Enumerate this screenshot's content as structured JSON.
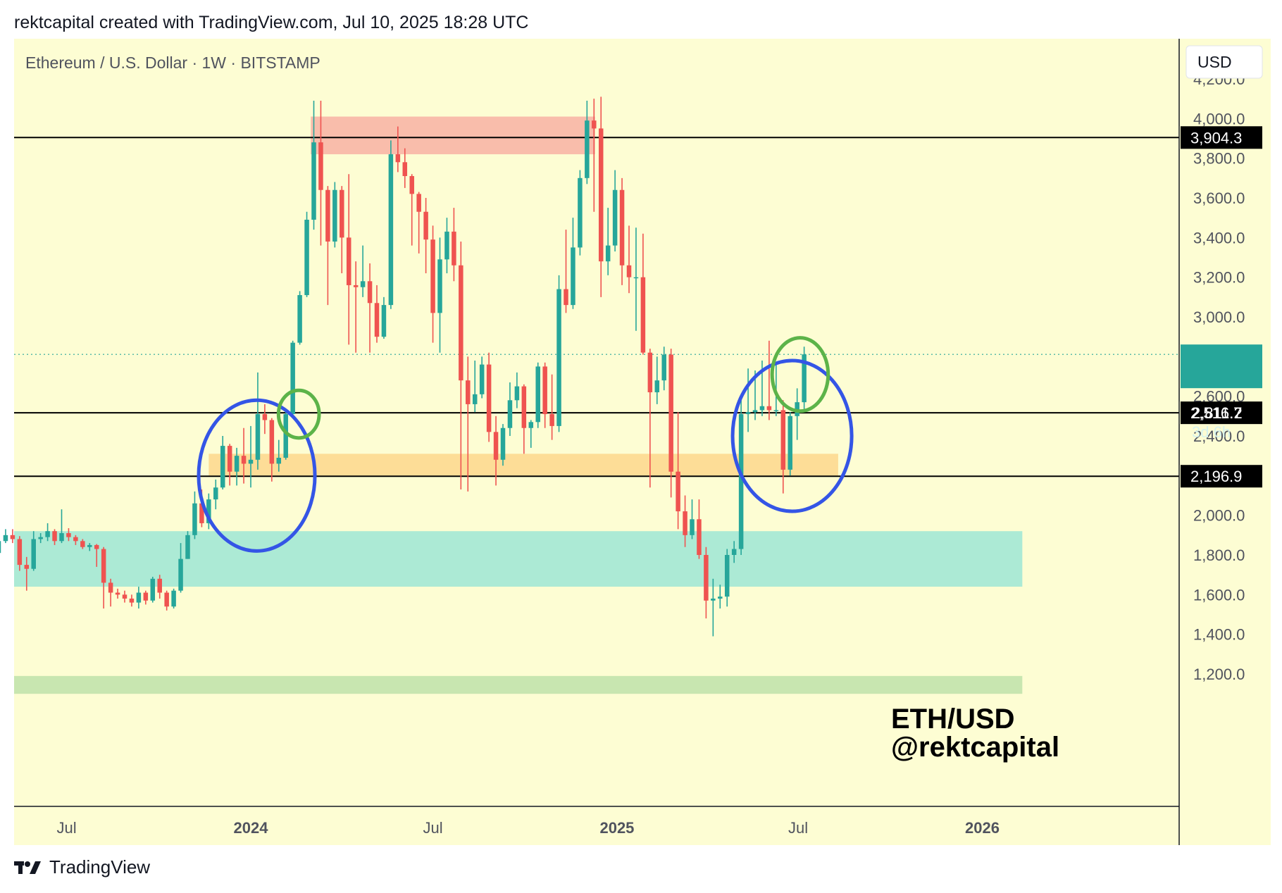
{
  "header": {
    "attribution": "rektcapital created with TradingView.com, Jul 10, 2025 18:28 UTC"
  },
  "chart": {
    "symbol_line": "Ethereum / U.S. Dollar · 1W · BITSTAMP",
    "currency_label": "USD",
    "watermark_line1": "ETH/USD",
    "watermark_line2": "@rektcapital",
    "current_price_label": "2,811.2",
    "countdown_label": "3d 6h"
  },
  "colors": {
    "plot_bg": "#fdfdd3",
    "up": "#26a69a",
    "down": "#ef5350",
    "resistance_zone": "#f9bdab",
    "support_zone": "#fddd97",
    "accumulation_zone": "#acead5",
    "base_zone": "#c8e6b0",
    "circle_blue": "#3455e6",
    "circle_green": "#5cb349",
    "current_price": "#26a69a"
  },
  "chart_data": {
    "type": "candlestick",
    "title": "Ethereum / U.S. Dollar · 1W · BITSTAMP",
    "ylim": [
      1050,
      4400
    ],
    "y_axis_ticks": [
      "4,200.0",
      "4,000.0",
      "3,800.0",
      "3,600.0",
      "3,400.0",
      "3,200.0",
      "3,000.0",
      "2,600.0",
      "2,400.0",
      "2,000.0",
      "1,800.0",
      "1,600.0",
      "1,400.0",
      "1,200.0"
    ],
    "y_axis_tick_values": [
      4200,
      4000,
      3800,
      3600,
      3400,
      3200,
      3000,
      2600,
      2400,
      2000,
      1800,
      1600,
      1400,
      1200
    ],
    "x_axis_ticks": [
      {
        "label": "Jul",
        "date": "2023-07-01",
        "bold": false
      },
      {
        "label": "2024",
        "date": "2024-01-01",
        "bold": true
      },
      {
        "label": "Jul",
        "date": "2024-07-01",
        "bold": false
      },
      {
        "label": "2025",
        "date": "2025-01-01",
        "bold": true
      },
      {
        "label": "Jul",
        "date": "2025-07-01",
        "bold": false
      },
      {
        "label": "2026",
        "date": "2026-01-01",
        "bold": true
      }
    ],
    "horizontal_levels": [
      {
        "value": 3904.3,
        "label": "3,904.3"
      },
      {
        "value": 2516.7,
        "label": "2,516.7"
      },
      {
        "value": 2196.9,
        "label": "2,196.9"
      }
    ],
    "current_price": 2811.2,
    "zones": [
      {
        "name": "resistance",
        "from_date": "2024-03-01",
        "to_date": "2024-12-10",
        "low": 3820,
        "high": 4010
      },
      {
        "name": "support",
        "from_date": "2023-11-20",
        "to_date": "2025-08-10",
        "low": 2200,
        "high": 2310
      },
      {
        "name": "accumulation",
        "from_date": "2023-04-10",
        "to_date": "2026-02-10",
        "low": 1640,
        "high": 1920
      },
      {
        "name": "base",
        "from_date": "2023-04-10",
        "to_date": "2026-02-10",
        "low": 1100,
        "high": 1190
      }
    ],
    "annotations": [
      {
        "shape": "circle",
        "color": "blue",
        "center_date": "2024-01-07",
        "center_value": 2200,
        "radius_weeks": 8.3,
        "radius_value": 380
      },
      {
        "shape": "circle",
        "color": "green",
        "center_date": "2024-02-18",
        "center_value": 2510,
        "radius_weeks": 2.9,
        "radius_value": 120
      },
      {
        "shape": "circle",
        "color": "blue",
        "center_date": "2025-06-25",
        "center_value": 2400,
        "radius_weeks": 8.5,
        "radius_value": 380
      },
      {
        "shape": "circle",
        "color": "green",
        "center_date": "2025-07-03",
        "center_value": 2710,
        "radius_weeks": 4.0,
        "radius_value": 185
      }
    ],
    "candles": [
      {
        "date": "2023-04-10",
        "open": 1880,
        "high": 1920,
        "low": 1790,
        "close": 1840
      },
      {
        "date": "2023-04-17",
        "open": 1840,
        "high": 1890,
        "low": 1770,
        "close": 1810
      },
      {
        "date": "2023-04-24",
        "open": 1810,
        "high": 1905,
        "low": 1790,
        "close": 1870
      },
      {
        "date": "2023-05-01",
        "open": 1870,
        "high": 1930,
        "low": 1860,
        "close": 1900
      },
      {
        "date": "2023-05-08",
        "open": 1900,
        "high": 1930,
        "low": 1860,
        "close": 1880
      },
      {
        "date": "2023-05-15",
        "open": 1880,
        "high": 1895,
        "low": 1720,
        "close": 1750
      },
      {
        "date": "2023-05-22",
        "open": 1750,
        "high": 1790,
        "low": 1620,
        "close": 1730
      },
      {
        "date": "2023-05-29",
        "open": 1730,
        "high": 1920,
        "low": 1720,
        "close": 1880
      },
      {
        "date": "2023-06-05",
        "open": 1880,
        "high": 1910,
        "low": 1860,
        "close": 1890
      },
      {
        "date": "2023-06-12",
        "open": 1890,
        "high": 1960,
        "low": 1870,
        "close": 1920
      },
      {
        "date": "2023-06-19",
        "open": 1920,
        "high": 1930,
        "low": 1850,
        "close": 1870
      },
      {
        "date": "2023-06-26",
        "open": 1870,
        "high": 2030,
        "low": 1860,
        "close": 1910
      },
      {
        "date": "2023-07-03",
        "open": 1910,
        "high": 1935,
        "low": 1870,
        "close": 1890
      },
      {
        "date": "2023-07-10",
        "open": 1890,
        "high": 1900,
        "low": 1850,
        "close": 1870
      },
      {
        "date": "2023-07-17",
        "open": 1870,
        "high": 1880,
        "low": 1830,
        "close": 1840
      },
      {
        "date": "2023-07-24",
        "open": 1840,
        "high": 1860,
        "low": 1820,
        "close": 1850
      },
      {
        "date": "2023-07-31",
        "open": 1850,
        "high": 1855,
        "low": 1740,
        "close": 1830
      },
      {
        "date": "2023-08-07",
        "open": 1830,
        "high": 1840,
        "low": 1530,
        "close": 1660
      },
      {
        "date": "2023-08-14",
        "open": 1660,
        "high": 1680,
        "low": 1540,
        "close": 1610
      },
      {
        "date": "2023-08-21",
        "open": 1610,
        "high": 1630,
        "low": 1580,
        "close": 1600
      },
      {
        "date": "2023-08-28",
        "open": 1600,
        "high": 1620,
        "low": 1560,
        "close": 1580
      },
      {
        "date": "2023-09-04",
        "open": 1580,
        "high": 1600,
        "low": 1540,
        "close": 1560
      },
      {
        "date": "2023-09-11",
        "open": 1560,
        "high": 1640,
        "low": 1530,
        "close": 1610
      },
      {
        "date": "2023-09-18",
        "open": 1610,
        "high": 1620,
        "low": 1550,
        "close": 1570
      },
      {
        "date": "2023-09-25",
        "open": 1570,
        "high": 1690,
        "low": 1560,
        "close": 1680
      },
      {
        "date": "2023-10-02",
        "open": 1680,
        "high": 1700,
        "low": 1580,
        "close": 1610
      },
      {
        "date": "2023-10-09",
        "open": 1610,
        "high": 1620,
        "low": 1520,
        "close": 1540
      },
      {
        "date": "2023-10-16",
        "open": 1540,
        "high": 1630,
        "low": 1530,
        "close": 1620
      },
      {
        "date": "2023-10-23",
        "open": 1620,
        "high": 1860,
        "low": 1610,
        "close": 1780
      },
      {
        "date": "2023-10-30",
        "open": 1780,
        "high": 1920,
        "low": 1780,
        "close": 1900
      },
      {
        "date": "2023-11-06",
        "open": 1900,
        "high": 2120,
        "low": 1880,
        "close": 2060
      },
      {
        "date": "2023-11-13",
        "open": 2060,
        "high": 2130,
        "low": 1940,
        "close": 1960
      },
      {
        "date": "2023-11-20",
        "open": 1960,
        "high": 2110,
        "low": 1930,
        "close": 2080
      },
      {
        "date": "2023-11-27",
        "open": 2080,
        "high": 2180,
        "low": 2030,
        "close": 2140
      },
      {
        "date": "2023-12-04",
        "open": 2140,
        "high": 2400,
        "low": 2130,
        "close": 2350
      },
      {
        "date": "2023-12-11",
        "open": 2350,
        "high": 2360,
        "low": 2150,
        "close": 2220
      },
      {
        "date": "2023-12-18",
        "open": 2220,
        "high": 2340,
        "low": 2150,
        "close": 2300
      },
      {
        "date": "2023-12-25",
        "open": 2300,
        "high": 2440,
        "low": 2160,
        "close": 2260
      },
      {
        "date": "2024-01-01",
        "open": 2260,
        "high": 2450,
        "low": 2140,
        "close": 2280
      },
      {
        "date": "2024-01-08",
        "open": 2280,
        "high": 2720,
        "low": 2230,
        "close": 2510
      },
      {
        "date": "2024-01-15",
        "open": 2510,
        "high": 2560,
        "low": 2410,
        "close": 2480
      },
      {
        "date": "2024-01-22",
        "open": 2480,
        "high": 2490,
        "low": 2170,
        "close": 2260
      },
      {
        "date": "2024-01-29",
        "open": 2260,
        "high": 2380,
        "low": 2220,
        "close": 2290
      },
      {
        "date": "2024-02-05",
        "open": 2290,
        "high": 2530,
        "low": 2280,
        "close": 2510
      },
      {
        "date": "2024-02-12",
        "open": 2510,
        "high": 2880,
        "low": 2500,
        "close": 2870
      },
      {
        "date": "2024-02-19",
        "open": 2870,
        "high": 3130,
        "low": 2860,
        "close": 3110
      },
      {
        "date": "2024-02-26",
        "open": 3110,
        "high": 3530,
        "low": 3100,
        "close": 3490
      },
      {
        "date": "2024-03-04",
        "open": 3490,
        "high": 4090,
        "low": 3440,
        "close": 3880
      },
      {
        "date": "2024-03-11",
        "open": 3880,
        "high": 4090,
        "low": 3360,
        "close": 3640
      },
      {
        "date": "2024-03-18",
        "open": 3640,
        "high": 3660,
        "low": 3060,
        "close": 3380
      },
      {
        "date": "2024-03-25",
        "open": 3380,
        "high": 3680,
        "low": 3350,
        "close": 3640
      },
      {
        "date": "2024-04-01",
        "open": 3640,
        "high": 3660,
        "low": 3220,
        "close": 3400
      },
      {
        "date": "2024-04-08",
        "open": 3400,
        "high": 3720,
        "low": 2860,
        "close": 3160
      },
      {
        "date": "2024-04-15",
        "open": 3160,
        "high": 3280,
        "low": 2820,
        "close": 3150
      },
      {
        "date": "2024-04-22",
        "open": 3150,
        "high": 3360,
        "low": 3100,
        "close": 3180
      },
      {
        "date": "2024-04-29",
        "open": 3180,
        "high": 3270,
        "low": 2820,
        "close": 3070
      },
      {
        "date": "2024-05-06",
        "open": 3070,
        "high": 3160,
        "low": 2870,
        "close": 2900
      },
      {
        "date": "2024-05-13",
        "open": 2900,
        "high": 3100,
        "low": 2890,
        "close": 3060
      },
      {
        "date": "2024-05-20",
        "open": 3060,
        "high": 3890,
        "low": 3040,
        "close": 3820
      },
      {
        "date": "2024-05-27",
        "open": 3820,
        "high": 3960,
        "low": 3730,
        "close": 3780
      },
      {
        "date": "2024-06-03",
        "open": 3780,
        "high": 3850,
        "low": 3650,
        "close": 3710
      },
      {
        "date": "2024-06-10",
        "open": 3710,
        "high": 3720,
        "low": 3360,
        "close": 3620
      },
      {
        "date": "2024-06-17",
        "open": 3620,
        "high": 3630,
        "low": 3320,
        "close": 3530
      },
      {
        "date": "2024-06-24",
        "open": 3530,
        "high": 3600,
        "low": 3220,
        "close": 3390
      },
      {
        "date": "2024-07-01",
        "open": 3390,
        "high": 3460,
        "low": 2870,
        "close": 3020
      },
      {
        "date": "2024-07-08",
        "open": 3020,
        "high": 3400,
        "low": 2820,
        "close": 3290
      },
      {
        "date": "2024-07-15",
        "open": 3290,
        "high": 3500,
        "low": 3220,
        "close": 3430
      },
      {
        "date": "2024-07-22",
        "open": 3430,
        "high": 3550,
        "low": 3180,
        "close": 3260
      },
      {
        "date": "2024-07-29",
        "open": 3260,
        "high": 3380,
        "low": 2130,
        "close": 2680
      },
      {
        "date": "2024-08-05",
        "open": 2680,
        "high": 2800,
        "low": 2120,
        "close": 2560
      },
      {
        "date": "2024-08-12",
        "open": 2560,
        "high": 2780,
        "low": 2520,
        "close": 2610
      },
      {
        "date": "2024-08-19",
        "open": 2610,
        "high": 2800,
        "low": 2590,
        "close": 2760
      },
      {
        "date": "2024-08-26",
        "open": 2760,
        "high": 2820,
        "low": 2370,
        "close": 2420
      },
      {
        "date": "2024-09-02",
        "open": 2420,
        "high": 2500,
        "low": 2150,
        "close": 2280
      },
      {
        "date": "2024-09-09",
        "open": 2280,
        "high": 2460,
        "low": 2250,
        "close": 2440
      },
      {
        "date": "2024-09-16",
        "open": 2440,
        "high": 2670,
        "low": 2400,
        "close": 2580
      },
      {
        "date": "2024-09-23",
        "open": 2580,
        "high": 2720,
        "low": 2540,
        "close": 2650
      },
      {
        "date": "2024-09-30",
        "open": 2650,
        "high": 2660,
        "low": 2310,
        "close": 2440
      },
      {
        "date": "2024-10-07",
        "open": 2440,
        "high": 2480,
        "low": 2340,
        "close": 2470
      },
      {
        "date": "2024-10-14",
        "open": 2470,
        "high": 2770,
        "low": 2440,
        "close": 2750
      },
      {
        "date": "2024-10-21",
        "open": 2750,
        "high": 2770,
        "low": 2440,
        "close": 2510
      },
      {
        "date": "2024-10-28",
        "open": 2510,
        "high": 2710,
        "low": 2380,
        "close": 2450
      },
      {
        "date": "2024-11-04",
        "open": 2450,
        "high": 3210,
        "low": 2420,
        "close": 3140
      },
      {
        "date": "2024-11-11",
        "open": 3140,
        "high": 3440,
        "low": 3020,
        "close": 3060
      },
      {
        "date": "2024-11-18",
        "open": 3060,
        "high": 3500,
        "low": 3040,
        "close": 3350
      },
      {
        "date": "2024-11-25",
        "open": 3350,
        "high": 3740,
        "low": 3310,
        "close": 3700
      },
      {
        "date": "2024-12-02",
        "open": 3700,
        "high": 4090,
        "low": 3670,
        "close": 3990
      },
      {
        "date": "2024-12-09",
        "open": 3990,
        "high": 4100,
        "low": 3530,
        "close": 3950
      },
      {
        "date": "2024-12-16",
        "open": 3950,
        "high": 4110,
        "low": 3100,
        "close": 3280
      },
      {
        "date": "2024-12-23",
        "open": 3280,
        "high": 3550,
        "low": 3210,
        "close": 3360
      },
      {
        "date": "2024-12-30",
        "open": 3360,
        "high": 3740,
        "low": 3330,
        "close": 3640
      },
      {
        "date": "2025-01-06",
        "open": 3640,
        "high": 3700,
        "low": 3160,
        "close": 3260
      },
      {
        "date": "2025-01-13",
        "open": 3260,
        "high": 3460,
        "low": 3120,
        "close": 3200
      },
      {
        "date": "2025-01-20",
        "open": 3200,
        "high": 3450,
        "low": 2930,
        "close": 3200
      },
      {
        "date": "2025-01-27",
        "open": 3200,
        "high": 3420,
        "low": 2810,
        "close": 2820
      },
      {
        "date": "2025-02-03",
        "open": 2820,
        "high": 2840,
        "low": 2140,
        "close": 2620
      },
      {
        "date": "2025-02-10",
        "open": 2620,
        "high": 2800,
        "low": 2560,
        "close": 2680
      },
      {
        "date": "2025-02-17",
        "open": 2680,
        "high": 2850,
        "low": 2630,
        "close": 2810
      },
      {
        "date": "2025-02-24",
        "open": 2810,
        "high": 2840,
        "low": 2090,
        "close": 2220
      },
      {
        "date": "2025-03-03",
        "open": 2220,
        "high": 2520,
        "low": 1930,
        "close": 2020
      },
      {
        "date": "2025-03-10",
        "open": 2020,
        "high": 2100,
        "low": 1840,
        "close": 1900
      },
      {
        "date": "2025-03-17",
        "open": 1900,
        "high": 2080,
        "low": 1880,
        "close": 1980
      },
      {
        "date": "2025-03-24",
        "open": 1980,
        "high": 2080,
        "low": 1780,
        "close": 1800
      },
      {
        "date": "2025-03-31",
        "open": 1800,
        "high": 1840,
        "low": 1480,
        "close": 1570
      },
      {
        "date": "2025-04-07",
        "open": 1570,
        "high": 1680,
        "low": 1390,
        "close": 1580
      },
      {
        "date": "2025-04-14",
        "open": 1580,
        "high": 1650,
        "low": 1530,
        "close": 1590
      },
      {
        "date": "2025-04-21",
        "open": 1590,
        "high": 1830,
        "low": 1540,
        "close": 1800
      },
      {
        "date": "2025-04-28",
        "open": 1800,
        "high": 1870,
        "low": 1760,
        "close": 1830
      },
      {
        "date": "2025-05-05",
        "open": 1830,
        "high": 2580,
        "low": 1800,
        "close": 2510
      },
      {
        "date": "2025-05-12",
        "open": 2510,
        "high": 2740,
        "low": 2420,
        "close": 2520
      },
      {
        "date": "2025-05-19",
        "open": 2520,
        "high": 2730,
        "low": 2480,
        "close": 2530
      },
      {
        "date": "2025-05-26",
        "open": 2530,
        "high": 2780,
        "low": 2500,
        "close": 2550
      },
      {
        "date": "2025-06-02",
        "open": 2550,
        "high": 2880,
        "low": 2480,
        "close": 2530
      },
      {
        "date": "2025-06-09",
        "open": 2530,
        "high": 2760,
        "low": 2500,
        "close": 2530
      },
      {
        "date": "2025-06-16",
        "open": 2530,
        "high": 2580,
        "low": 2110,
        "close": 2230
      },
      {
        "date": "2025-06-23",
        "open": 2230,
        "high": 2520,
        "low": 2200,
        "close": 2500
      },
      {
        "date": "2025-06-30",
        "open": 2500,
        "high": 2640,
        "low": 2380,
        "close": 2570
      },
      {
        "date": "2025-07-07",
        "open": 2570,
        "high": 2850,
        "low": 2530,
        "close": 2811.2
      }
    ]
  }
}
